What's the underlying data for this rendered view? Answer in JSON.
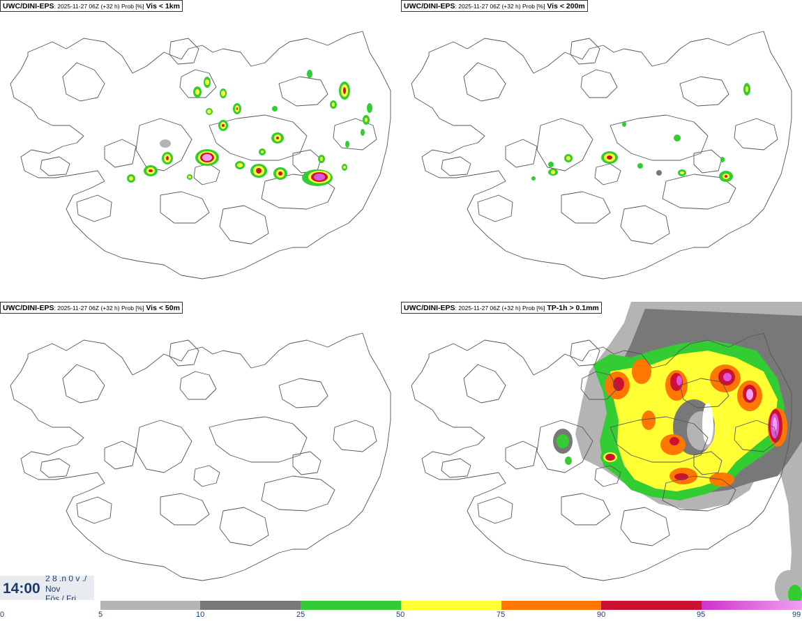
{
  "panels": [
    {
      "source": "UWC/DINI-EPS",
      "meta": ": 2025-11-27 06Z (+32 h) Prob [%]",
      "param": "Vis < 1km"
    },
    {
      "source": "UWC/DINI-EPS",
      "meta": ": 2025-11-27 06Z (+32 h) Prob [%]",
      "param": "Vis < 200m"
    },
    {
      "source": "UWC/DINI-EPS",
      "meta": ": 2025-11-27 06Z (+32 h) Prob [%]",
      "param": "Vis < 50m"
    },
    {
      "source": "UWC/DINI-EPS",
      "meta": ": 2025-11-27 06Z (+32 h) Prob [%]",
      "param": "TP-1h > 0.1mm"
    }
  ],
  "valid": {
    "time": "14:00",
    "line1": "2 8 .n 0 v ./",
    "line2": "Nov",
    "line3": "Fös / Fri"
  },
  "colorbar": {
    "ticks": [
      "0",
      "5",
      "10",
      "25",
      "50",
      "75",
      "90",
      "95",
      "99"
    ],
    "colors": [
      "#b4b4b4",
      "#787878",
      "#33cc33",
      "#ffff33",
      "#ff7700",
      "#cc1133",
      "gradient-magenta"
    ]
  }
}
